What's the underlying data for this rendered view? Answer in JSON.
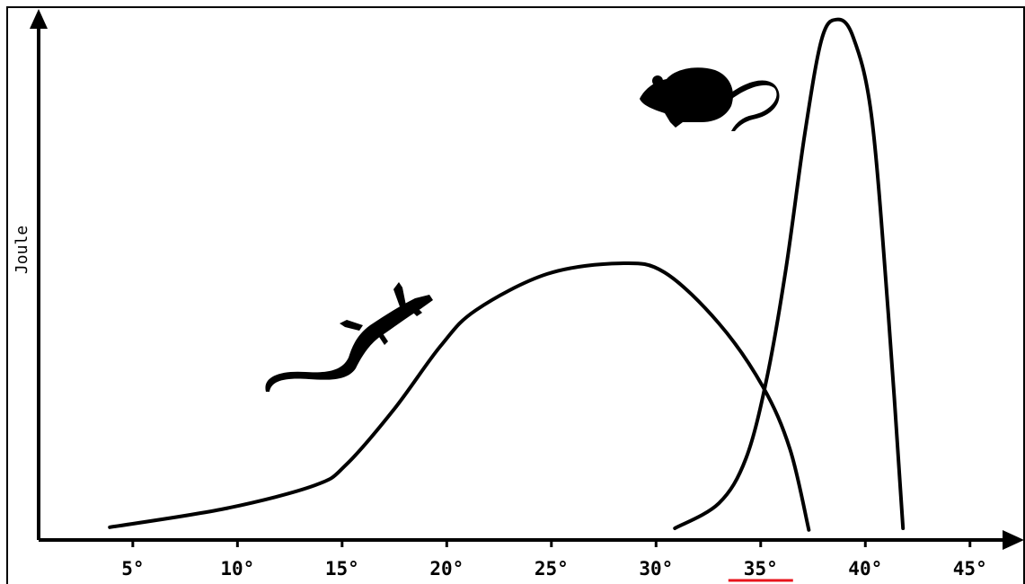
{
  "chart_data": {
    "type": "line",
    "y_label": "Joule",
    "xlim": [
      0.5,
      47.5
    ],
    "ylim": [
      0,
      100
    ],
    "xticks": [
      {
        "value": 5,
        "label": "5°"
      },
      {
        "value": 10,
        "label": "10°"
      },
      {
        "value": 15,
        "label": "15°"
      },
      {
        "value": 20,
        "label": "20°"
      },
      {
        "value": 25,
        "label": "25°"
      },
      {
        "value": 30,
        "label": "30°"
      },
      {
        "value": 35,
        "label": "35°"
      },
      {
        "value": 40,
        "label": "40°"
      },
      {
        "value": 45,
        "label": "45°"
      }
    ],
    "highlighted_xtick": 35,
    "highlight_color": "#e8141c",
    "series": [
      {
        "color": "#000000",
        "x": [
          3.9,
          9.4,
          13.7,
          15.2,
          17.5,
          19.7,
          21.4,
          24.8,
          28.3,
          30.4,
          33.0,
          35.1,
          36.4,
          37.3
        ],
        "values": [
          2.4,
          5.9,
          10.3,
          14.2,
          24.7,
          36.5,
          43.3,
          50.1,
          52.1,
          50.4,
          40.8,
          28.9,
          17.1,
          1.9
        ]
      },
      {
        "color": "#000000",
        "x": [
          30.9,
          33.0,
          34.3,
          35.3,
          36.2,
          37.1,
          37.9,
          38.6,
          39.4,
          40.3,
          41.1,
          41.8
        ],
        "values": [
          2.2,
          6.9,
          15.4,
          30.6,
          50.9,
          76.3,
          94.1,
          98.0,
          94.9,
          79.7,
          42.5,
          2.2
        ]
      }
    ]
  }
}
